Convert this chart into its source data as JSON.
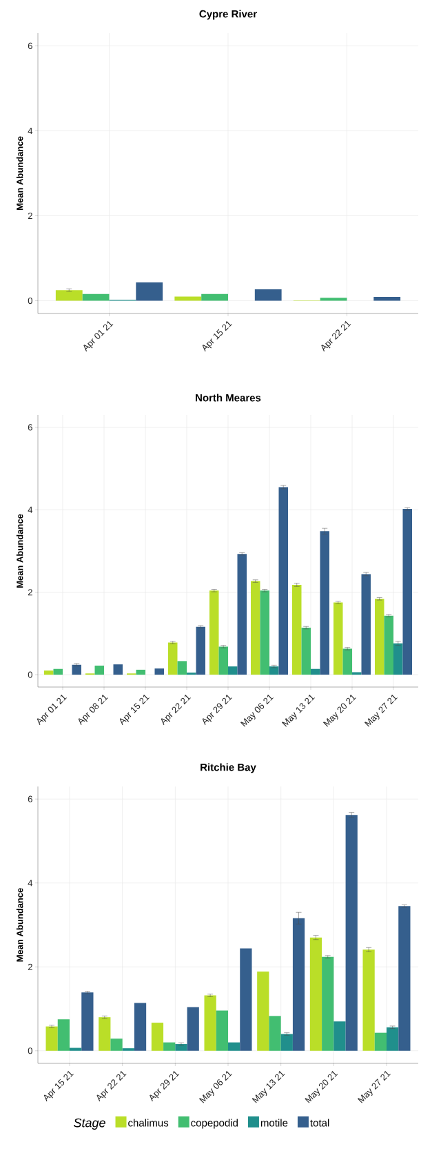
{
  "chart_data": [
    {
      "type": "bar",
      "title": "Cypre River",
      "ylabel": "Mean Abundance",
      "categories": [
        "Apr 01 21",
        "Apr 15 21",
        "Apr 22 21"
      ],
      "ylim": [
        -0.3,
        6.3
      ],
      "yticks": [
        0,
        2,
        4,
        6
      ],
      "grid": true,
      "series": [
        {
          "color": "#bade28",
          "values": [
            0.25,
            0.1,
            0.01
          ],
          "errors": [
            0.03,
            null,
            null
          ]
        },
        {
          "color": "#42be71",
          "values": [
            0.16,
            0.16,
            0.07
          ]
        },
        {
          "color": "#208f8c",
          "values": [
            0.02,
            0,
            0
          ]
        },
        {
          "color": "#355f8d",
          "values": [
            0.43,
            0.27,
            0.09
          ]
        }
      ]
    },
    {
      "type": "bar",
      "title": "North Meares",
      "ylabel": "Mean Abundance",
      "categories": [
        "Apr 01 21",
        "Apr 08 21",
        "Apr 15 21",
        "Apr 22 21",
        "Apr 29 21",
        "May 06 21",
        "May 13 21",
        "May 20 21",
        "May 27 21"
      ],
      "ylim": [
        -0.3,
        6.3
      ],
      "yticks": [
        0,
        2,
        4,
        6
      ],
      "grid": true,
      "series": [
        {
          "color": "#bade28",
          "values": [
            0.1,
            0.03,
            0.03,
            0.78,
            2.04,
            2.27,
            2.18,
            1.75,
            1.84
          ],
          "errors": [
            null,
            null,
            null,
            0.03,
            0.03,
            0.03,
            0.04,
            0.03,
            0.03
          ]
        },
        {
          "color": "#42be71",
          "values": [
            0.14,
            0.22,
            0.12,
            0.33,
            0.68,
            2.04,
            1.14,
            0.63,
            1.43
          ],
          "errors": [
            null,
            null,
            null,
            null,
            0.03,
            0.03,
            0.03,
            0.03,
            0.03
          ]
        },
        {
          "color": "#208f8c",
          "values": [
            0,
            0,
            0,
            0.05,
            0.2,
            0.2,
            0.14,
            0.06,
            0.76
          ],
          "errors": [
            null,
            null,
            null,
            null,
            null,
            0.03,
            null,
            null,
            0.05
          ]
        },
        {
          "color": "#355f8d",
          "values": [
            0.24,
            0.25,
            0.15,
            1.16,
            2.93,
            4.55,
            3.48,
            2.44,
            4.02
          ],
          "errors": [
            0.03,
            null,
            null,
            0.03,
            0.03,
            0.04,
            0.07,
            0.04,
            0.03
          ]
        }
      ]
    },
    {
      "type": "bar",
      "title": "Ritchie Bay",
      "ylabel": "Mean Abundance",
      "categories": [
        "Apr 15 21",
        "Apr 22 21",
        "Apr 29 21",
        "May 06 21",
        "May 13 21",
        "May 20 21",
        "May 27 21"
      ],
      "ylim": [
        -0.3,
        6.3
      ],
      "yticks": [
        0,
        2,
        4,
        6
      ],
      "grid": true,
      "legend": "bottom",
      "legend_title": "Stage",
      "series": [
        {
          "name": "chalimus",
          "color": "#bade28",
          "values": [
            0.58,
            0.8,
            0.67,
            1.32,
            1.89,
            2.7,
            2.41
          ],
          "errors": [
            0.03,
            0.03,
            null,
            0.03,
            null,
            0.05,
            0.05
          ]
        },
        {
          "name": "copepodid",
          "color": "#42be71",
          "values": [
            0.75,
            0.29,
            0.2,
            0.96,
            0.83,
            2.24,
            0.43
          ],
          "errors": [
            null,
            null,
            null,
            null,
            null,
            0.03,
            null
          ]
        },
        {
          "name": "motile",
          "color": "#208f8c",
          "values": [
            0.07,
            0.06,
            0.16,
            0.2,
            0.4,
            0.7,
            0.56
          ],
          "errors": [
            null,
            null,
            0.03,
            null,
            0.03,
            null,
            0.03
          ]
        },
        {
          "name": "total",
          "color": "#355f8d",
          "values": [
            1.39,
            1.14,
            1.04,
            2.44,
            3.16,
            5.62,
            3.45
          ],
          "errors": [
            0.03,
            null,
            null,
            null,
            0.14,
            0.06,
            0.03
          ]
        }
      ]
    }
  ]
}
